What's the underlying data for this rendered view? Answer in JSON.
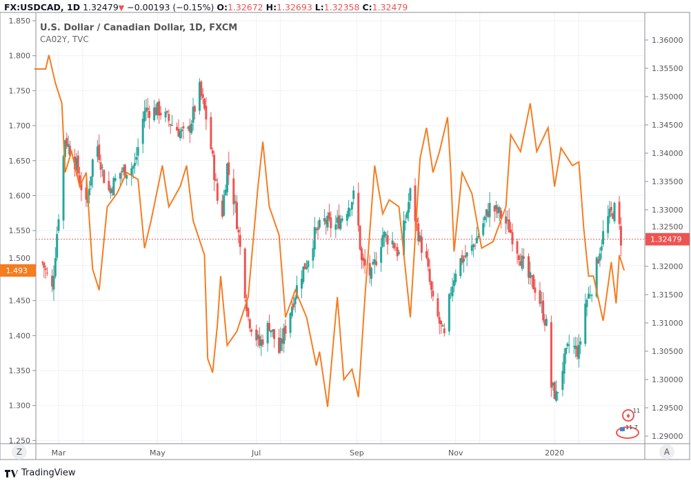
{
  "header": {
    "symbol": "FX:USDCAD, 1D",
    "last": "1.32479",
    "change": "−0.00193 (−0.15%)",
    "o_label": "O:",
    "o": "1.32672",
    "h_label": "H:",
    "h": "1.32693",
    "l_label": "L:",
    "l": "1.32358",
    "c_label": "C:",
    "c": "1.32479"
  },
  "legend": {
    "main": "U.S. Dollar / Canadian Dollar, 1D, FXCM",
    "compare": "CA02Y, TVC"
  },
  "buttons": {
    "auto_scale": "A",
    "zoom_reset": "Z"
  },
  "footer": {
    "brand": "TradingView"
  },
  "colors": {
    "up": "#26a69a",
    "down": "#ef5350",
    "compare": "#f57c1f",
    "grid": "#eef1f5"
  },
  "chart_data": {
    "type": "candlestick+line",
    "x_ticks": [
      {
        "label": "Mar",
        "date": "2019-03-01"
      },
      {
        "label": "May",
        "date": "2019-05-01"
      },
      {
        "label": "Jul",
        "date": "2019-07-01"
      },
      {
        "label": "Sep",
        "date": "2019-09-01"
      },
      {
        "label": "Nov",
        "date": "2019-11-01"
      },
      {
        "label": "2020",
        "date": "2020-01-01"
      }
    ],
    "left_axis": {
      "ylim": [
        1.25,
        1.85
      ],
      "ticks": [
        "1.850",
        "1.800",
        "1.750",
        "1.700",
        "1.650",
        "1.600",
        "1.550",
        "1.500",
        "1.450",
        "1.400",
        "1.350",
        "1.300",
        "1.250"
      ],
      "last_label": "1.493"
    },
    "right_axis": {
      "ylim": [
        1.2895,
        1.3625
      ],
      "ticks": [
        "1.36000",
        "1.35500",
        "1.35000",
        "1.34500",
        "1.34000",
        "1.33500",
        "1.33000",
        "1.32500",
        "1.32000",
        "1.31500",
        "1.31000",
        "1.30500",
        "1.30000",
        "1.29500",
        "1.29000"
      ],
      "last_label": "1.32479"
    },
    "price_series": {
      "name": "USDCAD",
      "axis": "right",
      "closes": [
        [
          "2019-02-19",
          1.3207
        ],
        [
          "2019-02-25",
          1.3159
        ],
        [
          "2019-03-01",
          1.3293
        ],
        [
          "2019-03-05",
          1.3427
        ],
        [
          "2019-03-12",
          1.3378
        ],
        [
          "2019-03-18",
          1.3305
        ],
        [
          "2019-03-24",
          1.3427
        ],
        [
          "2019-03-31",
          1.3329
        ],
        [
          "2019-04-08",
          1.3366
        ],
        [
          "2019-04-17",
          1.3378
        ],
        [
          "2019-04-23",
          1.3476
        ],
        [
          "2019-05-02",
          1.3476
        ],
        [
          "2019-05-10",
          1.3451
        ],
        [
          "2019-05-19",
          1.3427
        ],
        [
          "2019-05-27",
          1.3512
        ],
        [
          "2019-06-01",
          1.3451
        ],
        [
          "2019-06-05",
          1.3366
        ],
        [
          "2019-06-09",
          1.3268
        ],
        [
          "2019-06-13",
          1.3378
        ],
        [
          "2019-06-18",
          1.3305
        ],
        [
          "2019-06-22",
          1.3207
        ],
        [
          "2019-06-26",
          1.311
        ],
        [
          "2019-07-03",
          1.3061
        ],
        [
          "2019-07-09",
          1.3098
        ],
        [
          "2019-07-15",
          1.3049
        ],
        [
          "2019-07-22",
          1.3122
        ],
        [
          "2019-07-28",
          1.3183
        ],
        [
          "2019-08-01",
          1.3207
        ],
        [
          "2019-08-06",
          1.3256
        ],
        [
          "2019-08-12",
          1.328
        ],
        [
          "2019-08-18",
          1.3268
        ],
        [
          "2019-08-24",
          1.3293
        ],
        [
          "2019-08-31",
          1.3329
        ],
        [
          "2019-09-04",
          1.3207
        ],
        [
          "2019-09-10",
          1.3183
        ],
        [
          "2019-09-17",
          1.3256
        ],
        [
          "2019-09-23",
          1.3244
        ],
        [
          "2019-09-27",
          1.322
        ],
        [
          "2019-10-04",
          1.3329
        ],
        [
          "2019-10-10",
          1.3244
        ],
        [
          "2019-10-14",
          1.3207
        ],
        [
          "2019-10-18",
          1.3134
        ],
        [
          "2019-10-25",
          1.3073
        ],
        [
          "2019-10-29",
          1.3159
        ],
        [
          "2019-11-02",
          1.3207
        ],
        [
          "2019-11-09",
          1.322
        ],
        [
          "2019-11-15",
          1.3256
        ],
        [
          "2019-11-22",
          1.3305
        ],
        [
          "2019-11-28",
          1.3293
        ],
        [
          "2019-12-04",
          1.3268
        ],
        [
          "2019-12-09",
          1.3232
        ],
        [
          "2019-12-15",
          1.3183
        ],
        [
          "2019-12-21",
          1.3159
        ],
        [
          "2019-12-28",
          1.3085
        ],
        [
          "2019-12-30",
          1.2988
        ],
        [
          "2020-01-02",
          1.297
        ],
        [
          "2020-01-05",
          1.3012
        ],
        [
          "2020-01-10",
          1.3061
        ],
        [
          "2020-01-16",
          1.3049
        ],
        [
          "2020-01-20",
          1.3134
        ],
        [
          "2020-01-25",
          1.3171
        ],
        [
          "2020-01-29",
          1.3232
        ],
        [
          "2020-02-02",
          1.328
        ],
        [
          "2020-02-08",
          1.3305
        ],
        [
          "2020-02-11",
          1.32479
        ]
      ]
    },
    "compare_series": {
      "name": "CA02Y",
      "axis": "left",
      "points": [
        [
          "2019-02-14",
          1.781
        ],
        [
          "2019-02-21",
          1.781
        ],
        [
          "2019-02-23",
          1.801
        ],
        [
          "2019-02-27",
          1.761
        ],
        [
          "2019-03-03",
          1.732
        ],
        [
          "2019-03-05",
          1.633
        ],
        [
          "2019-03-09",
          1.663
        ],
        [
          "2019-03-14",
          1.613
        ],
        [
          "2019-03-18",
          1.633
        ],
        [
          "2019-03-22",
          1.495
        ],
        [
          "2019-03-26",
          1.465
        ],
        [
          "2019-03-31",
          1.584
        ],
        [
          "2019-04-06",
          1.603
        ],
        [
          "2019-04-12",
          1.633
        ],
        [
          "2019-04-19",
          1.623
        ],
        [
          "2019-04-23",
          1.525
        ],
        [
          "2019-04-27",
          1.564
        ],
        [
          "2019-05-04",
          1.643
        ],
        [
          "2019-05-08",
          1.584
        ],
        [
          "2019-05-15",
          1.613
        ],
        [
          "2019-05-19",
          1.643
        ],
        [
          "2019-05-23",
          1.564
        ],
        [
          "2019-05-30",
          1.515
        ],
        [
          "2019-06-01",
          1.367
        ],
        [
          "2019-06-04",
          1.347
        ],
        [
          "2019-06-07",
          1.416
        ],
        [
          "2019-06-09",
          1.485
        ],
        [
          "2019-06-13",
          1.386
        ],
        [
          "2019-06-19",
          1.406
        ],
        [
          "2019-06-26",
          1.455
        ],
        [
          "2019-07-02",
          1.613
        ],
        [
          "2019-07-05",
          1.677
        ],
        [
          "2019-07-09",
          1.584
        ],
        [
          "2019-07-15",
          1.544
        ],
        [
          "2019-07-19",
          1.426
        ],
        [
          "2019-07-25",
          1.465
        ],
        [
          "2019-08-01",
          1.426
        ],
        [
          "2019-08-07",
          1.357
        ],
        [
          "2019-08-09",
          1.377
        ],
        [
          "2019-08-14",
          1.298
        ],
        [
          "2019-08-20",
          1.455
        ],
        [
          "2019-08-24",
          1.337
        ],
        [
          "2019-08-29",
          1.352
        ],
        [
          "2019-09-02",
          1.312
        ],
        [
          "2019-09-06",
          1.455
        ],
        [
          "2019-09-12",
          1.643
        ],
        [
          "2019-09-17",
          1.574
        ],
        [
          "2019-09-21",
          1.594
        ],
        [
          "2019-09-27",
          1.584
        ],
        [
          "2019-10-04",
          1.426
        ],
        [
          "2019-10-10",
          1.653
        ],
        [
          "2019-10-14",
          1.697
        ],
        [
          "2019-10-18",
          1.633
        ],
        [
          "2019-10-22",
          1.663
        ],
        [
          "2019-10-27",
          1.712
        ],
        [
          "2019-10-29",
          1.633
        ],
        [
          "2019-10-31",
          1.52
        ],
        [
          "2019-11-05",
          1.633
        ],
        [
          "2019-11-11",
          1.603
        ],
        [
          "2019-11-17",
          1.525
        ],
        [
          "2019-11-24",
          1.534
        ],
        [
          "2019-12-02",
          1.584
        ],
        [
          "2019-12-05",
          1.687
        ],
        [
          "2019-12-11",
          1.663
        ],
        [
          "2019-12-17",
          1.732
        ],
        [
          "2019-12-21",
          1.663
        ],
        [
          "2019-12-28",
          1.697
        ],
        [
          "2020-01-01",
          1.613
        ],
        [
          "2020-01-05",
          1.668
        ],
        [
          "2020-01-12",
          1.643
        ],
        [
          "2020-01-16",
          1.648
        ],
        [
          "2020-01-19",
          1.554
        ],
        [
          "2020-01-22",
          1.485
        ],
        [
          "2020-01-25",
          1.485
        ],
        [
          "2020-01-31",
          1.421
        ],
        [
          "2020-02-05",
          1.505
        ],
        [
          "2020-02-08",
          1.446
        ],
        [
          "2020-02-10",
          1.515
        ],
        [
          "2020-02-13",
          1.493
        ]
      ]
    },
    "grid": true
  }
}
